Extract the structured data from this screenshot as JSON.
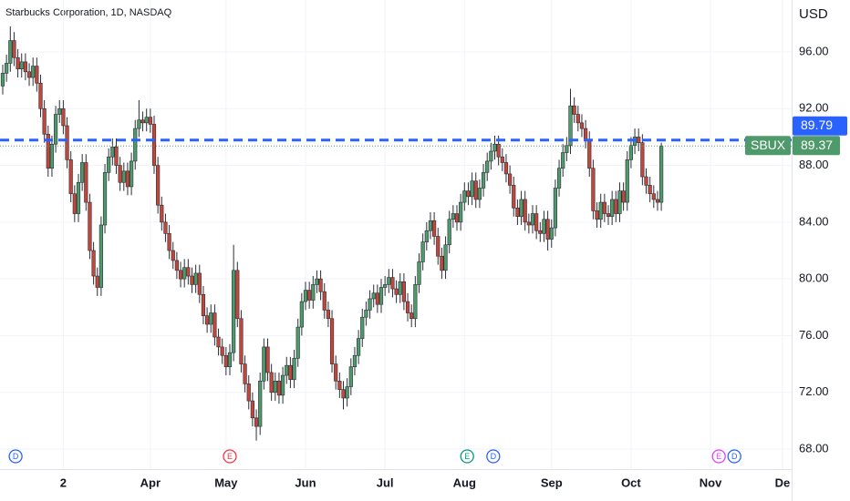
{
  "chart_data": {
    "type": "candlestick",
    "title": "Starbucks Corporation, 1D, NASDAQ",
    "currency": "USD",
    "symbol": "SBUX",
    "up_color": "#4f9a6a",
    "down_color": "#c2473a",
    "grid": true,
    "ylim": [
      66.59,
      99.66
    ],
    "yticks": [
      {
        "value": 96,
        "label": "96.00"
      },
      {
        "value": 92,
        "label": "92.00"
      },
      {
        "value": 88,
        "label": "88.00"
      },
      {
        "value": 84,
        "label": "84.00"
      },
      {
        "value": 80,
        "label": "80.00"
      },
      {
        "value": 76,
        "label": "76.00"
      },
      {
        "value": 72,
        "label": "72.00"
      },
      {
        "value": 68,
        "label": "68.00"
      }
    ],
    "xlim": [
      -0.72,
      208.43
    ],
    "xticks": [
      {
        "value": 16,
        "label": "2"
      },
      {
        "value": 39,
        "label": "Apr"
      },
      {
        "value": 59,
        "label": "May"
      },
      {
        "value": 80,
        "label": "Jun"
      },
      {
        "value": 101,
        "label": "Jul"
      },
      {
        "value": 122,
        "label": "Aug"
      },
      {
        "value": 145,
        "label": "Sep"
      },
      {
        "value": 166,
        "label": "Oct"
      },
      {
        "value": 187,
        "label": "Nov"
      },
      {
        "value": 206,
        "label": "De"
      }
    ],
    "price_line": 89.79,
    "price_line_color": "#2962ff",
    "last_price": 89.37,
    "events": [
      {
        "label": "D",
        "index": 3.4,
        "color": "#2962ff"
      },
      {
        "label": "E",
        "index": 60,
        "color": "#f23645"
      },
      {
        "label": "E",
        "index": 122.7,
        "color": "#089981"
      },
      {
        "label": "D",
        "index": 129.6,
        "color": "#2962ff"
      },
      {
        "label": "E",
        "index": 189.2,
        "color": "#e040fb"
      },
      {
        "label": "D",
        "index": 193.3,
        "color": "#2962ff"
      }
    ],
    "open": [
      93.6,
      94.5,
      95.2,
      96.8,
      95.6,
      94.8,
      95.3,
      94.6,
      94.2,
      95.0,
      93.8,
      92.0,
      90.2,
      87.8,
      89.5,
      91.6,
      92.0,
      90.8,
      88.4,
      86.0,
      84.6,
      86.8,
      88.2,
      85.4,
      82.0,
      80.2,
      79.4,
      83.8,
      87.5,
      88.6,
      89.3,
      88.0,
      86.8,
      87.6,
      86.5,
      88.3,
      90.6,
      91.2,
      91.0,
      91.4,
      90.9,
      88.0,
      85.2,
      84.0,
      83.2,
      82.0,
      81.3,
      80.6,
      80.0,
      80.8,
      80.2,
      79.6,
      80.4,
      78.9,
      77.4,
      76.8,
      77.6,
      75.9,
      75.2,
      74.6,
      73.8,
      74.8,
      80.6,
      77.2,
      74.0,
      72.6,
      71.4,
      70.2,
      69.6,
      72.8,
      75.2,
      73.4,
      72.0,
      72.8,
      71.8,
      73.2,
      73.9,
      72.9,
      74.4,
      76.6,
      78.4,
      79.2,
      78.5,
      79.6,
      80.0,
      79.1,
      77.8,
      77.2,
      74.0,
      72.8,
      72.2,
      71.6,
      72.4,
      73.8,
      74.6,
      75.8,
      77.3,
      77.8,
      78.6,
      79.0,
      78.2,
      79.4,
      79.6,
      80.1,
      79.3,
      78.9,
      79.8,
      78.4,
      77.6,
      77.2,
      79.6,
      81.2,
      82.6,
      83.4,
      84.1,
      83.0,
      81.6,
      80.6,
      82.4,
      84.2,
      84.6,
      84.0,
      85.4,
      86.2,
      85.8,
      86.9,
      85.6,
      86.4,
      87.5,
      88.3,
      89.0,
      89.5,
      88.6,
      88.2,
      87.4,
      86.6,
      85.0,
      84.4,
      85.6,
      84.0,
      83.8,
      84.6,
      83.4,
      83.2,
      84.2,
      82.8,
      83.6,
      86.4,
      87.8,
      88.9,
      89.4,
      92.2,
      91.6,
      91.0,
      90.6,
      89.8,
      87.8,
      84.8,
      84.2,
      85.4,
      84.6,
      84.4,
      85.6,
      84.6,
      86.2,
      85.4,
      88.4,
      89.4,
      90.0,
      89.6,
      87.2,
      86.6,
      86.0,
      85.6,
      85.4
    ],
    "high": [
      95.1,
      95.8,
      97.8,
      97.4,
      96.2,
      95.9,
      95.9,
      95.2,
      95.6,
      95.6,
      94.4,
      92.6,
      90.8,
      90.1,
      92.2,
      92.6,
      92.6,
      91.4,
      89.0,
      86.6,
      87.4,
      88.8,
      88.8,
      86.0,
      82.6,
      80.8,
      84.4,
      88.1,
      89.2,
      89.9,
      89.9,
      88.6,
      88.2,
      88.2,
      88.9,
      91.2,
      92.6,
      91.8,
      92.0,
      92.0,
      91.5,
      88.6,
      85.8,
      84.6,
      83.8,
      82.6,
      81.9,
      81.2,
      81.4,
      81.4,
      80.8,
      81.0,
      81.0,
      79.5,
      78.0,
      78.2,
      78.2,
      76.5,
      75.8,
      75.2,
      75.4,
      82.4,
      81.2,
      77.8,
      74.6,
      73.2,
      72.0,
      70.8,
      73.4,
      75.8,
      75.8,
      74.0,
      73.4,
      73.4,
      73.8,
      74.5,
      74.5,
      75.0,
      77.2,
      79.0,
      79.8,
      79.8,
      80.2,
      80.6,
      80.6,
      79.7,
      78.4,
      77.8,
      74.6,
      73.4,
      72.8,
      73.0,
      74.4,
      75.2,
      76.4,
      77.9,
      78.4,
      79.2,
      79.6,
      79.6,
      80.0,
      80.2,
      80.7,
      80.7,
      79.9,
      80.4,
      80.4,
      79.0,
      78.2,
      80.2,
      81.8,
      83.2,
      84.0,
      84.7,
      84.7,
      83.6,
      82.2,
      83.0,
      84.8,
      85.2,
      85.2,
      86.0,
      86.8,
      86.8,
      87.5,
      87.5,
      87.0,
      88.1,
      88.9,
      89.6,
      90.1,
      90.1,
      89.2,
      88.8,
      88.0,
      87.2,
      85.6,
      86.2,
      86.2,
      84.6,
      85.2,
      85.2,
      84.0,
      84.8,
      84.8,
      84.2,
      87.0,
      88.4,
      89.5,
      90.0,
      93.4,
      92.8,
      92.2,
      91.6,
      91.2,
      90.4,
      88.4,
      85.4,
      86.0,
      86.0,
      85.2,
      86.2,
      86.2,
      86.8,
      86.8,
      89.0,
      90.0,
      90.6,
      90.6,
      90.2,
      87.8,
      87.2,
      86.6,
      86.2,
      89.6
    ],
    "low": [
      93.0,
      93.9,
      94.6,
      95.0,
      94.2,
      94.2,
      94.0,
      93.6,
      93.6,
      93.2,
      91.4,
      89.6,
      87.2,
      87.2,
      88.9,
      91.0,
      90.2,
      87.8,
      85.4,
      84.0,
      84.0,
      86.2,
      84.8,
      81.4,
      79.6,
      78.8,
      78.8,
      83.2,
      86.9,
      88.0,
      87.4,
      86.2,
      86.2,
      85.9,
      85.9,
      87.7,
      90.0,
      90.4,
      90.4,
      90.3,
      87.4,
      84.6,
      83.4,
      82.6,
      81.4,
      80.7,
      80.0,
      79.4,
      79.4,
      79.6,
      79.0,
      79.0,
      78.3,
      76.8,
      76.2,
      76.2,
      75.3,
      74.6,
      74.0,
      73.2,
      73.2,
      74.2,
      76.6,
      73.4,
      72.0,
      70.8,
      69.6,
      68.6,
      69.0,
      72.2,
      72.8,
      71.4,
      71.4,
      71.2,
      71.2,
      72.6,
      72.3,
      72.3,
      73.8,
      76.0,
      77.8,
      77.9,
      77.9,
      79.0,
      78.5,
      77.2,
      76.6,
      73.4,
      72.2,
      71.6,
      70.8,
      71.0,
      71.8,
      73.2,
      74.0,
      75.2,
      76.7,
      77.2,
      78.0,
      77.6,
      77.6,
      78.8,
      79.0,
      78.7,
      78.3,
      78.3,
      77.8,
      77.0,
      76.6,
      76.6,
      79.0,
      80.6,
      82.0,
      82.8,
      82.4,
      81.0,
      80.0,
      80.0,
      81.8,
      83.6,
      83.4,
      83.4,
      84.8,
      85.2,
      85.2,
      85.0,
      85.0,
      85.8,
      86.9,
      87.7,
      88.4,
      88.0,
      87.6,
      86.8,
      86.0,
      84.4,
      83.8,
      83.8,
      83.4,
      83.2,
      83.2,
      82.8,
      82.6,
      82.6,
      82.0,
      82.2,
      83.0,
      85.8,
      87.2,
      88.3,
      88.8,
      91.0,
      90.4,
      90.0,
      89.2,
      87.2,
      84.2,
      83.6,
      83.6,
      84.0,
      83.8,
      83.8,
      84.0,
      84.0,
      84.8,
      84.8,
      87.8,
      88.8,
      89.0,
      86.6,
      86.0,
      85.4,
      85.0,
      84.8,
      84.8
    ],
    "close": [
      94.5,
      95.2,
      96.8,
      95.6,
      94.8,
      95.3,
      94.6,
      94.2,
      95.0,
      93.8,
      92.0,
      90.2,
      87.8,
      89.5,
      91.6,
      92.0,
      90.8,
      88.4,
      86.0,
      84.6,
      86.8,
      88.2,
      85.4,
      82.0,
      80.2,
      79.4,
      83.8,
      87.5,
      88.6,
      89.3,
      88.0,
      86.8,
      87.6,
      86.5,
      88.3,
      90.6,
      91.2,
      91.0,
      91.4,
      90.9,
      88.0,
      85.2,
      84.0,
      83.2,
      82.0,
      81.3,
      80.6,
      80.0,
      80.8,
      80.2,
      79.6,
      80.4,
      78.9,
      77.4,
      76.8,
      77.6,
      75.9,
      75.2,
      74.6,
      73.8,
      74.8,
      80.6,
      77.2,
      74.0,
      72.6,
      71.4,
      70.2,
      69.6,
      72.8,
      75.2,
      73.4,
      72.0,
      72.8,
      71.8,
      73.2,
      73.9,
      72.9,
      74.4,
      76.6,
      78.4,
      79.2,
      78.5,
      79.6,
      80.0,
      79.1,
      77.8,
      77.2,
      74.0,
      72.8,
      72.2,
      71.6,
      72.4,
      73.8,
      74.6,
      75.8,
      77.3,
      77.8,
      78.6,
      79.0,
      78.2,
      79.4,
      79.6,
      80.1,
      79.3,
      78.9,
      79.8,
      78.4,
      77.6,
      77.2,
      79.6,
      81.2,
      82.6,
      83.4,
      84.1,
      83.0,
      81.6,
      80.6,
      82.4,
      84.2,
      84.6,
      84.0,
      85.4,
      86.2,
      85.8,
      86.9,
      85.6,
      86.4,
      87.5,
      88.3,
      89.0,
      89.5,
      88.6,
      88.2,
      87.4,
      86.6,
      85.0,
      84.4,
      85.6,
      84.0,
      83.8,
      84.6,
      83.4,
      83.2,
      84.2,
      82.8,
      83.6,
      86.4,
      87.8,
      88.9,
      89.4,
      92.2,
      91.6,
      91.0,
      90.6,
      89.8,
      87.8,
      84.8,
      84.2,
      85.4,
      84.6,
      84.4,
      85.6,
      84.6,
      86.2,
      85.4,
      88.4,
      89.4,
      90.0,
      89.6,
      87.2,
      86.6,
      86.0,
      85.6,
      85.4,
      89.37
    ]
  }
}
